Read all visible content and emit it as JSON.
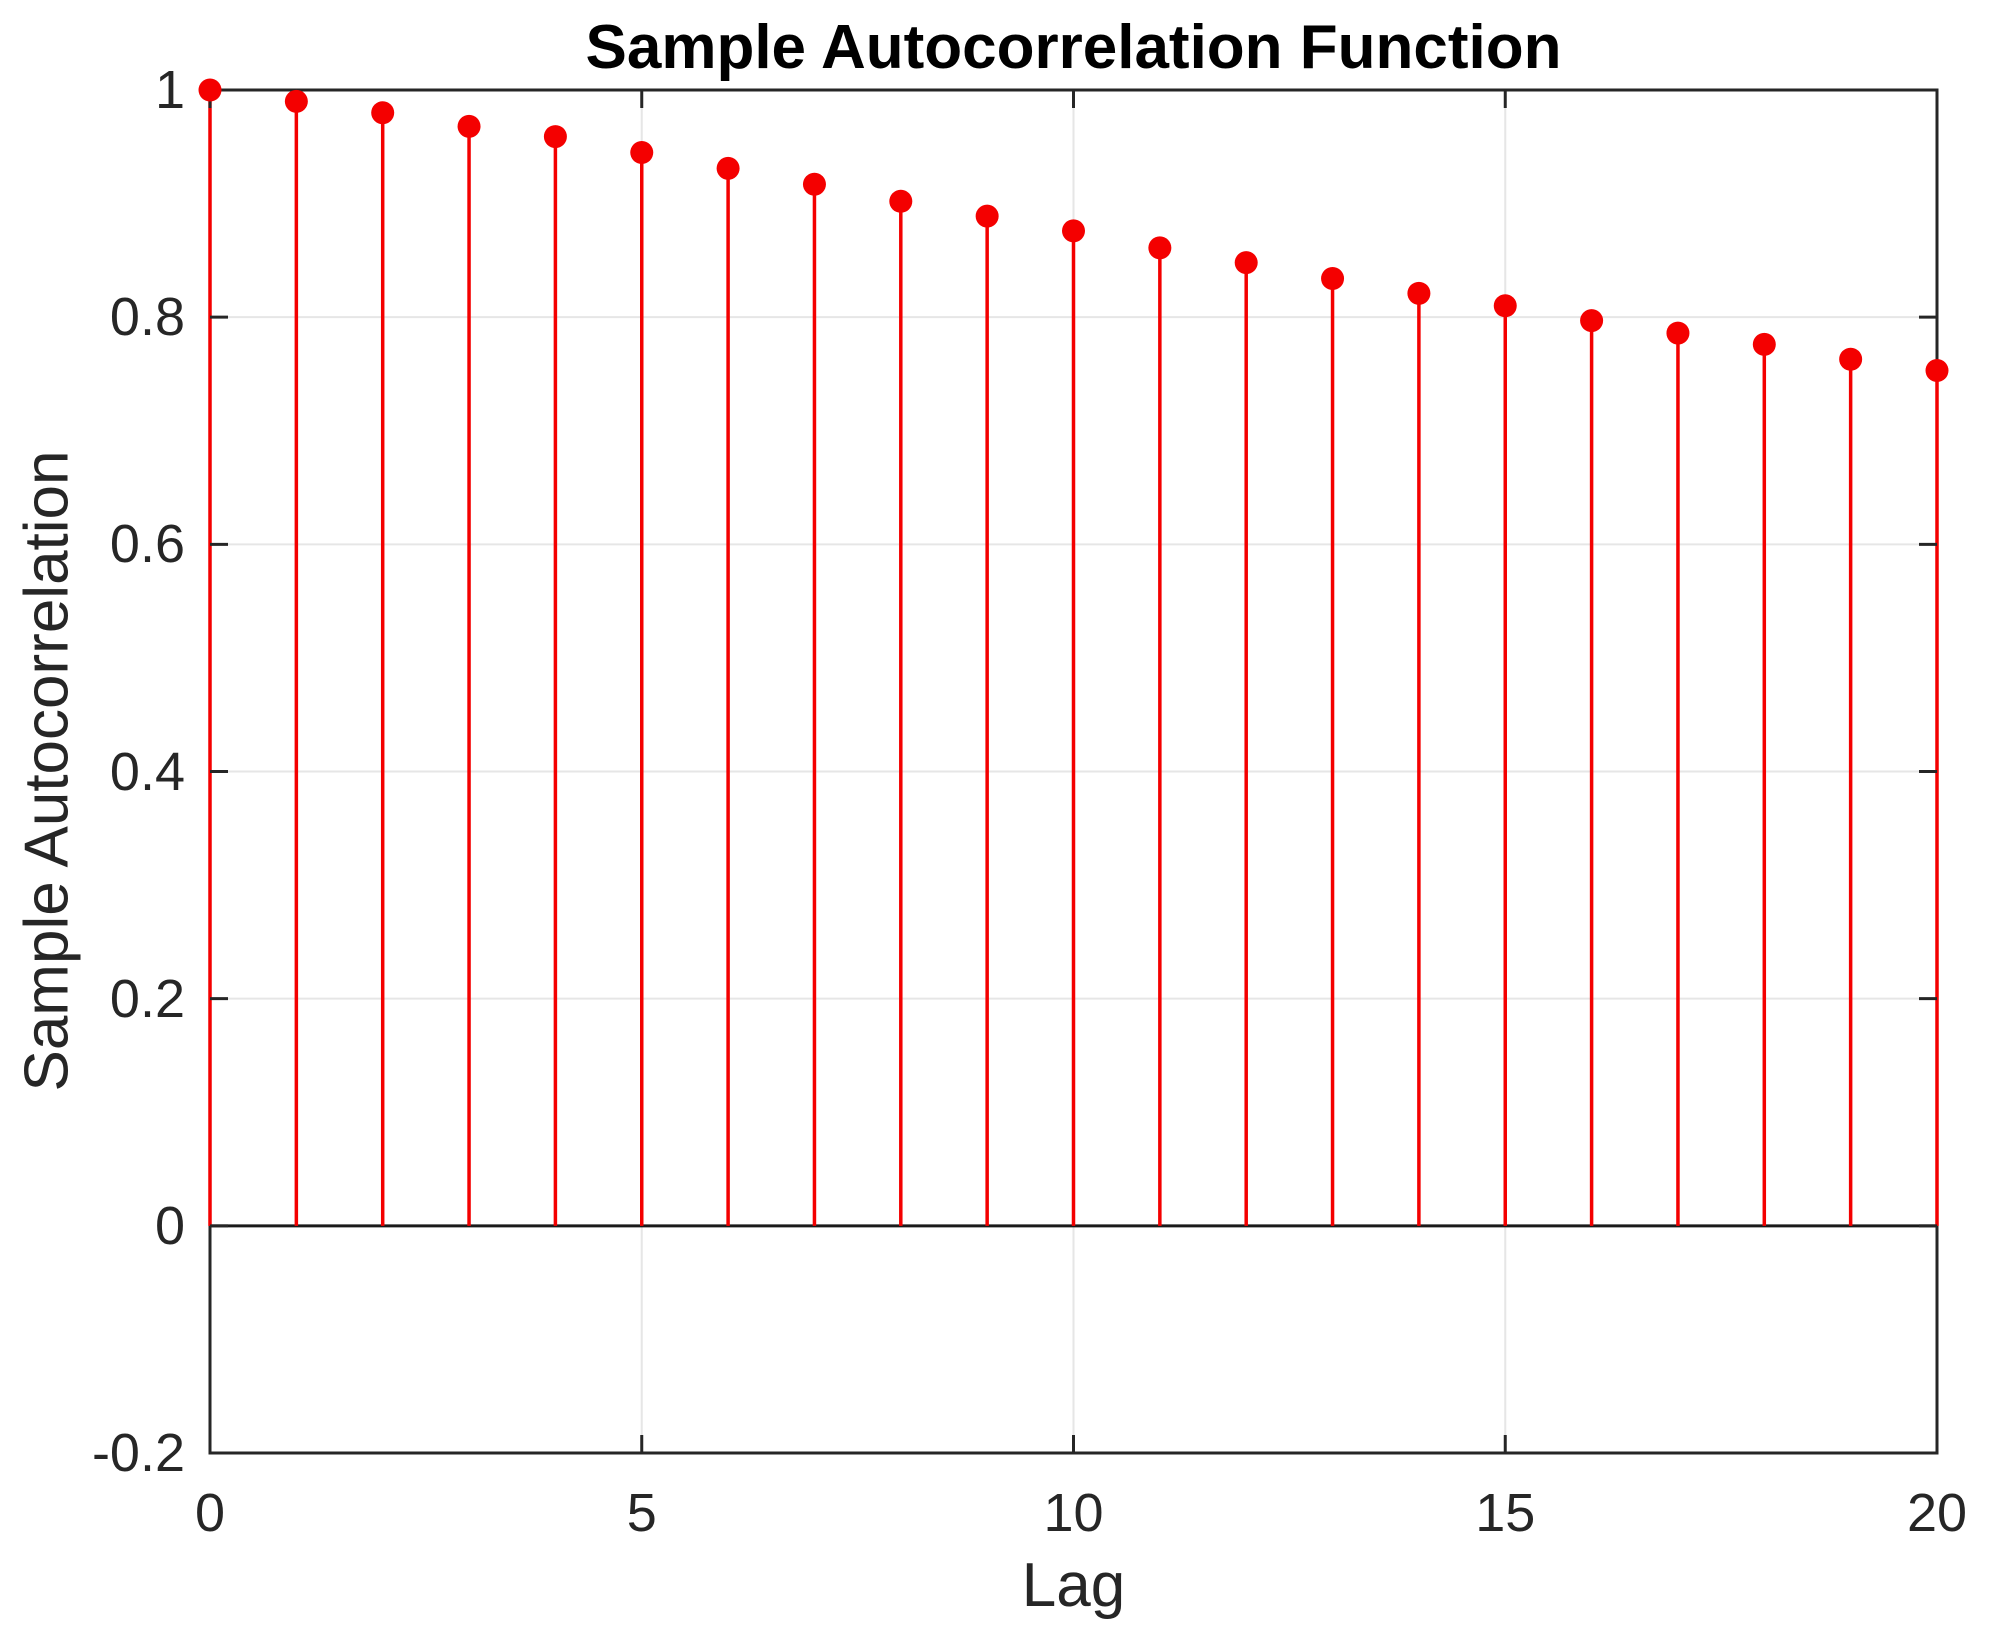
{
  "figure": {
    "background": "#ffffff"
  },
  "chart_data": {
    "type": "stem",
    "title": "Sample Autocorrelation Function",
    "xlabel": "Lag",
    "ylabel": "Sample Autocorrelation",
    "x": [
      0,
      1,
      2,
      3,
      4,
      5,
      6,
      7,
      8,
      9,
      10,
      11,
      12,
      13,
      14,
      15,
      16,
      17,
      18,
      19,
      20
    ],
    "values": [
      1.0,
      0.99,
      0.98,
      0.968,
      0.959,
      0.945,
      0.931,
      0.917,
      0.902,
      0.889,
      0.876,
      0.861,
      0.848,
      0.834,
      0.821,
      0.81,
      0.797,
      0.786,
      0.776,
      0.763,
      0.753
    ],
    "xlim": [
      0,
      20
    ],
    "ylim": [
      -0.2,
      1
    ],
    "xticks": [
      0,
      5,
      10,
      15,
      20
    ],
    "xtick_labels": [
      "0",
      "5",
      "10",
      "15",
      "20"
    ],
    "yticks": [
      1,
      0.8,
      0.6,
      0.4,
      0.2,
      0,
      -0.2
    ],
    "ytick_labels": [
      "1",
      "0.8",
      "0.6",
      "0.4",
      "0.2",
      "0",
      "-0.2"
    ],
    "baseline_value": 0,
    "grid": true,
    "legend": null,
    "colors": {
      "stem": "#f40000",
      "marker": "#f40000",
      "grid": "#e6e6e6",
      "axis": "#262626",
      "baseline": "#1a1a1a",
      "title": "#000000",
      "tick_label": "#262626"
    }
  }
}
